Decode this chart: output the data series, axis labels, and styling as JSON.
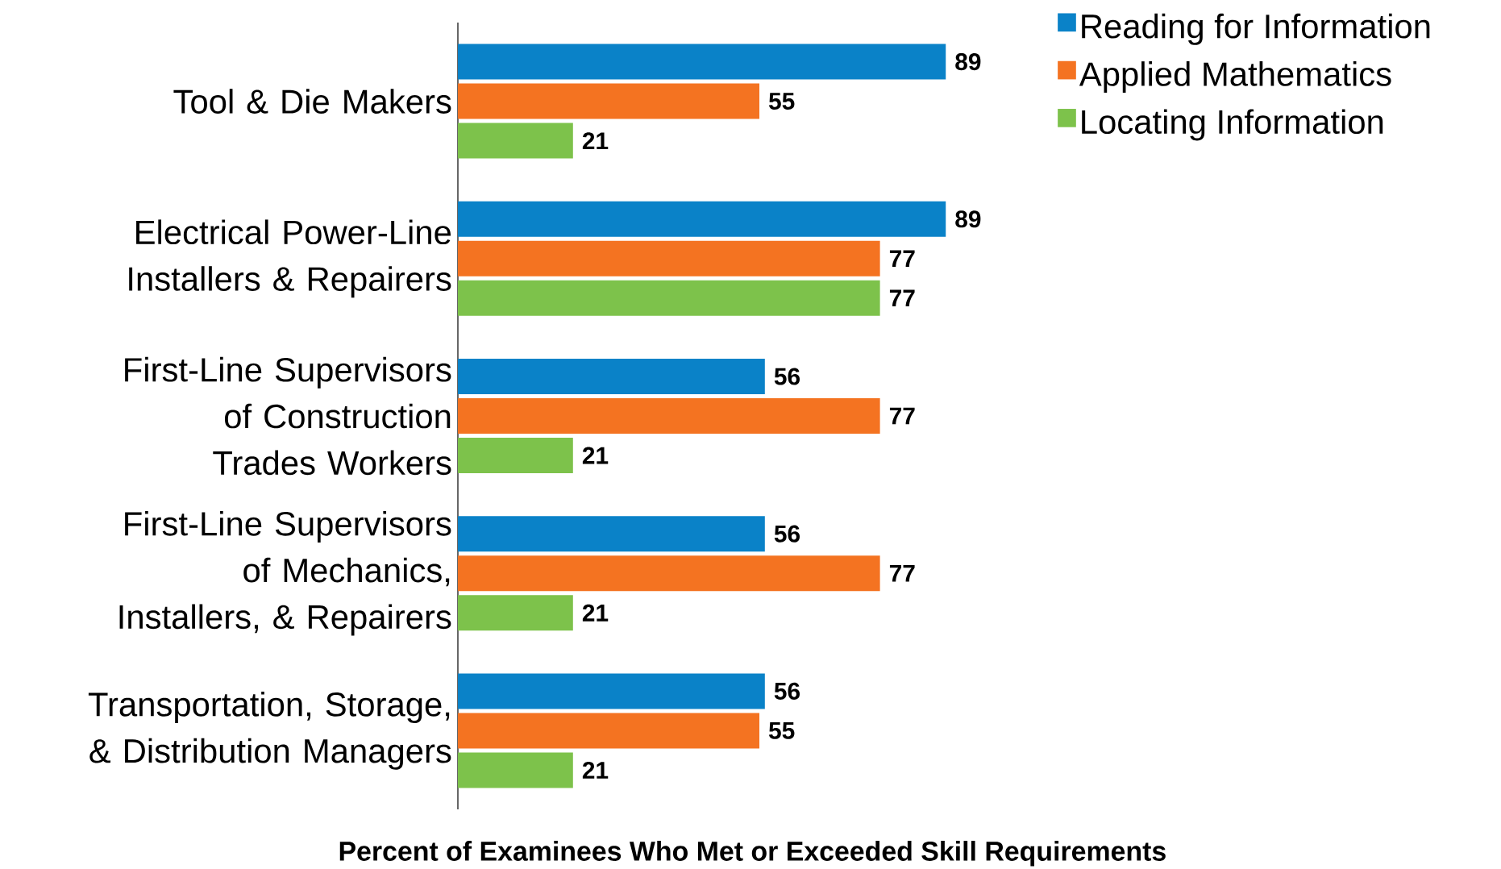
{
  "chart_data": {
    "type": "bar",
    "orientation": "horizontal",
    "xlabel": "Percent of Examinees Who Met or Exceeded Skill Requirements",
    "categories": [
      "Tool & Die Makers",
      "Electrical Power-Line Installers & Repairers",
      "First-Line Supervisors of Construction Trades Workers",
      "First-Line Supervisors of Mechanics, Installers, & Repairers",
      "Transportation, Storage, & Distribution Managers"
    ],
    "series": [
      {
        "name": "Reading for Information",
        "color": "#0a82c8",
        "values": [
          89,
          89,
          56,
          56,
          56
        ]
      },
      {
        "name": "Applied Mathematics",
        "color": "#f47321",
        "values": [
          55,
          77,
          77,
          77,
          55
        ]
      },
      {
        "name": "Locating Information",
        "color": "#7dc24b",
        "values": [
          21,
          77,
          21,
          21,
          21
        ]
      }
    ],
    "data_labels": true,
    "legend": "top right"
  }
}
